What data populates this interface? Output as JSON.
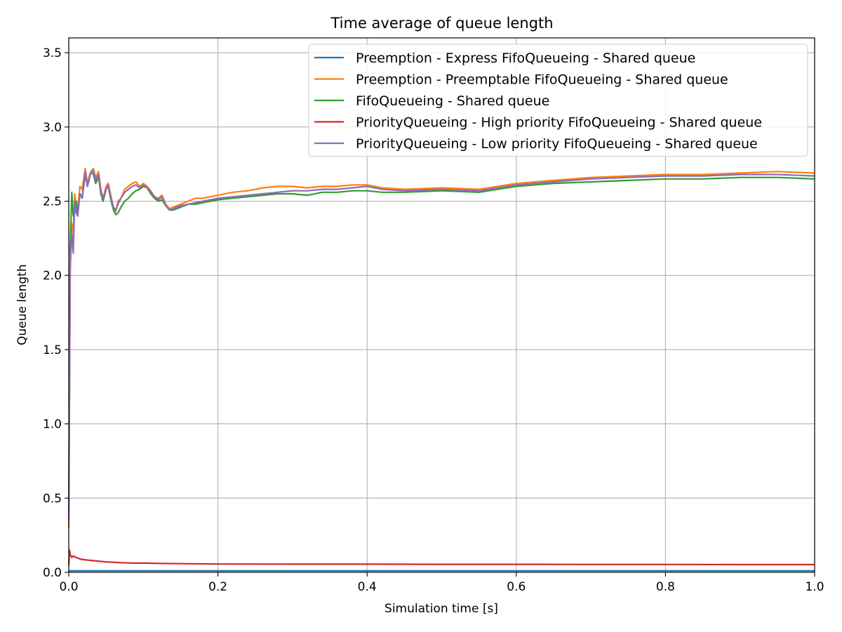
{
  "chart_data": {
    "type": "line",
    "title": "Time average of queue length",
    "xlabel": "Simulation time [s]",
    "ylabel": "Queue length",
    "xlim": [
      0.0,
      1.0
    ],
    "ylim": [
      0.0,
      3.6
    ],
    "xticks": [
      0.0,
      0.2,
      0.4,
      0.6,
      0.8,
      1.0
    ],
    "xtick_labels": [
      "0.0",
      "0.2",
      "0.4",
      "0.6",
      "0.8",
      "1.0"
    ],
    "yticks": [
      0.0,
      0.5,
      1.0,
      1.5,
      2.0,
      2.5,
      3.0,
      3.5
    ],
    "ytick_labels": [
      "0.0",
      "0.5",
      "1.0",
      "1.5",
      "2.0",
      "2.5",
      "3.0",
      "3.5"
    ],
    "grid": true,
    "legend_position": "top-right",
    "series": [
      {
        "name": "Preemption - Express FifoQueueing - Shared queue",
        "color": "#1f77b4",
        "x": [
          0.0,
          0.005,
          0.05,
          0.2,
          0.4,
          0.6,
          0.8,
          1.0
        ],
        "y": [
          0.01,
          0.01,
          0.01,
          0.01,
          0.01,
          0.01,
          0.01,
          0.01
        ]
      },
      {
        "name": "Preemption - Preemptable FifoQueueing - Shared queue",
        "color": "#ff7f0e",
        "x": [
          0.0,
          0.002,
          0.004,
          0.006,
          0.008,
          0.01,
          0.012,
          0.015,
          0.018,
          0.02,
          0.022,
          0.025,
          0.028,
          0.03,
          0.033,
          0.036,
          0.04,
          0.043,
          0.046,
          0.05,
          0.053,
          0.056,
          0.06,
          0.063,
          0.066,
          0.07,
          0.075,
          0.08,
          0.085,
          0.09,
          0.095,
          0.1,
          0.105,
          0.11,
          0.115,
          0.12,
          0.125,
          0.13,
          0.135,
          0.14,
          0.15,
          0.16,
          0.17,
          0.18,
          0.19,
          0.2,
          0.22,
          0.24,
          0.26,
          0.28,
          0.3,
          0.32,
          0.34,
          0.36,
          0.38,
          0.4,
          0.42,
          0.45,
          0.5,
          0.55,
          0.6,
          0.65,
          0.7,
          0.75,
          0.8,
          0.85,
          0.9,
          0.95,
          1.0
        ],
        "y": [
          0.3,
          2.1,
          2.35,
          2.3,
          2.55,
          2.48,
          2.45,
          2.6,
          2.58,
          2.65,
          2.72,
          2.62,
          2.68,
          2.7,
          2.72,
          2.66,
          2.7,
          2.58,
          2.52,
          2.6,
          2.62,
          2.55,
          2.45,
          2.43,
          2.5,
          2.52,
          2.58,
          2.6,
          2.62,
          2.63,
          2.6,
          2.62,
          2.6,
          2.57,
          2.53,
          2.52,
          2.54,
          2.48,
          2.45,
          2.46,
          2.48,
          2.5,
          2.52,
          2.52,
          2.53,
          2.54,
          2.56,
          2.57,
          2.59,
          2.6,
          2.6,
          2.59,
          2.6,
          2.6,
          2.61,
          2.61,
          2.59,
          2.58,
          2.59,
          2.58,
          2.62,
          2.64,
          2.66,
          2.67,
          2.68,
          2.68,
          2.69,
          2.7,
          2.69
        ]
      },
      {
        "name": "FifoQueueing - Shared queue",
        "color": "#2ca02c",
        "x": [
          0.0,
          0.002,
          0.004,
          0.006,
          0.008,
          0.01,
          0.012,
          0.015,
          0.018,
          0.02,
          0.022,
          0.025,
          0.028,
          0.03,
          0.033,
          0.036,
          0.04,
          0.043,
          0.046,
          0.05,
          0.053,
          0.056,
          0.06,
          0.063,
          0.066,
          0.07,
          0.075,
          0.08,
          0.085,
          0.09,
          0.095,
          0.1,
          0.105,
          0.11,
          0.115,
          0.12,
          0.125,
          0.13,
          0.135,
          0.14,
          0.15,
          0.16,
          0.17,
          0.18,
          0.19,
          0.2,
          0.22,
          0.24,
          0.26,
          0.28,
          0.3,
          0.32,
          0.34,
          0.36,
          0.38,
          0.4,
          0.42,
          0.45,
          0.5,
          0.55,
          0.6,
          0.65,
          0.7,
          0.75,
          0.8,
          0.85,
          0.9,
          0.95,
          1.0
        ],
        "y": [
          0.4,
          2.2,
          2.56,
          2.4,
          2.45,
          2.5,
          2.42,
          2.55,
          2.52,
          2.6,
          2.68,
          2.6,
          2.66,
          2.7,
          2.68,
          2.62,
          2.66,
          2.55,
          2.5,
          2.58,
          2.6,
          2.52,
          2.44,
          2.41,
          2.42,
          2.46,
          2.5,
          2.52,
          2.55,
          2.57,
          2.58,
          2.6,
          2.59,
          2.55,
          2.52,
          2.5,
          2.51,
          2.47,
          2.44,
          2.44,
          2.46,
          2.48,
          2.48,
          2.49,
          2.5,
          2.51,
          2.52,
          2.53,
          2.54,
          2.55,
          2.55,
          2.54,
          2.56,
          2.56,
          2.57,
          2.57,
          2.56,
          2.56,
          2.57,
          2.56,
          2.6,
          2.62,
          2.63,
          2.64,
          2.65,
          2.65,
          2.66,
          2.66,
          2.65
        ]
      },
      {
        "name": "PriorityQueueing - High priority FifoQueueing - Shared queue",
        "color": "#d62728",
        "x": [
          0.0,
          0.001,
          0.002,
          0.004,
          0.006,
          0.01,
          0.015,
          0.02,
          0.03,
          0.04,
          0.05,
          0.06,
          0.07,
          0.08,
          0.09,
          0.1,
          0.12,
          0.15,
          0.2,
          0.3,
          0.4,
          0.5,
          0.6,
          0.7,
          0.8,
          0.9,
          1.0
        ],
        "y": [
          0.05,
          0.15,
          0.12,
          0.1,
          0.11,
          0.1,
          0.09,
          0.085,
          0.08,
          0.075,
          0.07,
          0.068,
          0.065,
          0.063,
          0.062,
          0.062,
          0.06,
          0.058,
          0.056,
          0.055,
          0.055,
          0.054,
          0.054,
          0.053,
          0.053,
          0.052,
          0.052
        ]
      },
      {
        "name": "PriorityQueueing - Low priority FifoQueueing - Shared queue",
        "color": "#9467bd",
        "x": [
          0.0,
          0.002,
          0.004,
          0.006,
          0.008,
          0.01,
          0.012,
          0.015,
          0.018,
          0.02,
          0.022,
          0.025,
          0.028,
          0.03,
          0.033,
          0.036,
          0.04,
          0.043,
          0.046,
          0.05,
          0.053,
          0.056,
          0.06,
          0.063,
          0.066,
          0.07,
          0.075,
          0.08,
          0.085,
          0.09,
          0.095,
          0.1,
          0.105,
          0.11,
          0.115,
          0.12,
          0.125,
          0.13,
          0.135,
          0.14,
          0.15,
          0.16,
          0.17,
          0.18,
          0.19,
          0.2,
          0.22,
          0.24,
          0.26,
          0.28,
          0.3,
          0.32,
          0.34,
          0.36,
          0.38,
          0.4,
          0.42,
          0.45,
          0.5,
          0.55,
          0.6,
          0.65,
          0.7,
          0.75,
          0.8,
          0.85,
          0.9,
          0.95,
          1.0
        ],
        "y": [
          0.35,
          2.05,
          2.3,
          2.15,
          2.5,
          2.42,
          2.4,
          2.55,
          2.53,
          2.62,
          2.7,
          2.6,
          2.66,
          2.7,
          2.71,
          2.64,
          2.68,
          2.56,
          2.52,
          2.58,
          2.61,
          2.53,
          2.46,
          2.44,
          2.48,
          2.52,
          2.56,
          2.58,
          2.6,
          2.61,
          2.59,
          2.61,
          2.59,
          2.56,
          2.53,
          2.51,
          2.53,
          2.47,
          2.44,
          2.45,
          2.47,
          2.48,
          2.49,
          2.5,
          2.51,
          2.52,
          2.53,
          2.54,
          2.55,
          2.56,
          2.57,
          2.57,
          2.58,
          2.58,
          2.59,
          2.6,
          2.58,
          2.57,
          2.58,
          2.57,
          2.61,
          2.63,
          2.65,
          2.66,
          2.67,
          2.67,
          2.68,
          2.68,
          2.67
        ]
      }
    ]
  }
}
